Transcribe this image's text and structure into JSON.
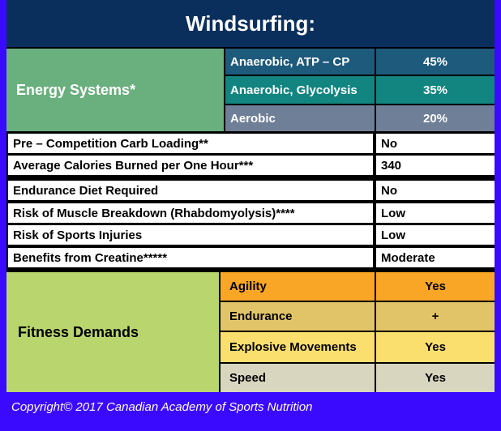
{
  "title": "Windsurfing:",
  "energy_systems": {
    "label": "Energy Systems*",
    "rows": [
      {
        "name": "Anaerobic, ATP – CP",
        "value": "45%",
        "color": "#1d5a7c"
      },
      {
        "name": "Anaerobic, Glycolysis",
        "value": "35%",
        "color": "#128580"
      },
      {
        "name": "Aerobic",
        "value": "20%",
        "color": "#6e7f97"
      }
    ]
  },
  "info_rows": [
    {
      "label": "Pre – Competition Carb Loading**",
      "value": "No"
    },
    {
      "label": "Average Calories Burned per One Hour***",
      "value": "340"
    },
    {
      "label": "Endurance Diet Required",
      "value": "No"
    },
    {
      "label": "Risk of Muscle Breakdown (Rhabdomyolysis)****",
      "value": "Low"
    },
    {
      "label": "Risk of Sports Injuries",
      "value": "Low"
    },
    {
      "label": "Benefits from Creatine*****",
      "value": "Moderate"
    }
  ],
  "fitness_demands": {
    "label": "Fitness Demands",
    "rows": [
      {
        "name": "Agility",
        "value": "Yes",
        "color": "#f9a627"
      },
      {
        "name": "Endurance",
        "value": "+",
        "color": "#e2c468"
      },
      {
        "name": "Explosive Movements",
        "value": "Yes",
        "color": "#fbdf6e"
      },
      {
        "name": "Speed",
        "value": "Yes",
        "color": "#d8d6bf"
      }
    ]
  },
  "copyright": "Copyright© 2017 Canadian Academy of Sports Nutrition",
  "colors": {
    "background": "#3a0aff",
    "title_bar": "#0a2f5c",
    "energy_label": "#6aaf7e",
    "fitness_label": "#b9d66e"
  }
}
